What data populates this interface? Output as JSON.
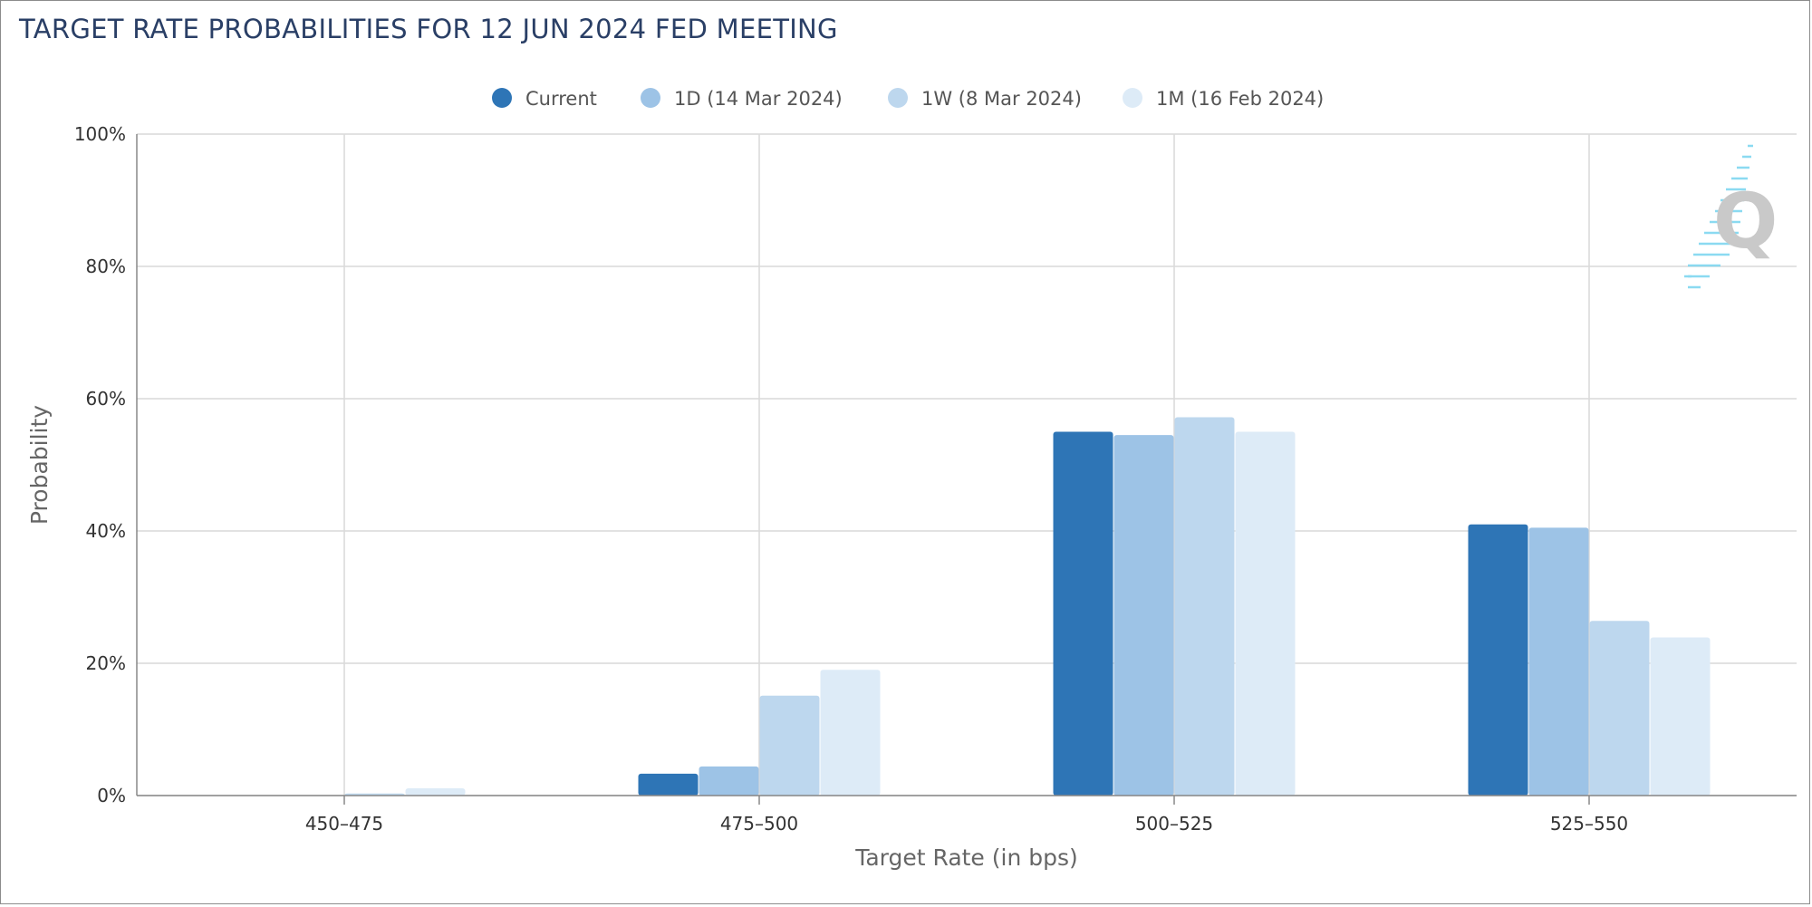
{
  "chart_data": {
    "type": "bar",
    "title": "TARGET RATE PROBABILITIES FOR 12 JUN 2024 FED MEETING",
    "xlabel": "Target Rate (in bps)",
    "ylabel": "Probability",
    "ylim": [
      0,
      100
    ],
    "y_ticks": [
      0,
      20,
      40,
      60,
      80,
      100
    ],
    "y_tick_suffix": "%",
    "grid": true,
    "legend_position": "top-center",
    "categories": [
      "450–475",
      "475–500",
      "500–525",
      "525–550"
    ],
    "series": [
      {
        "name": "Current",
        "color": "#2e75b6",
        "values": [
          0.0,
          3.3,
          55.0,
          41.0
        ]
      },
      {
        "name": "1D (14 Mar 2024)",
        "color": "#9dc3e6",
        "values": [
          0.0,
          4.4,
          54.5,
          40.5
        ]
      },
      {
        "name": "1W (8 Mar 2024)",
        "color": "#bdd7ee",
        "values": [
          0.3,
          15.1,
          57.2,
          26.4
        ]
      },
      {
        "name": "1M (16 Feb 2024)",
        "color": "#ddebf7",
        "values": [
          1.1,
          19.0,
          55.0,
          23.9
        ]
      }
    ]
  },
  "colors": {
    "title": "#2a3f66",
    "grid": "#d9d9d9",
    "axis": "#888888"
  },
  "icons": {
    "watermark": "quikstrike-logo-icon"
  }
}
